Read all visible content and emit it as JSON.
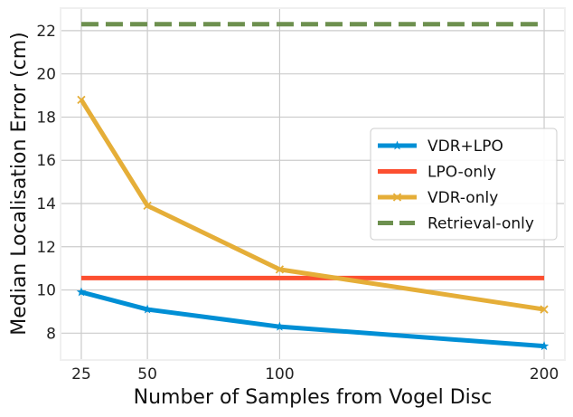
{
  "chart_data": {
    "type": "line",
    "title": "",
    "xlabel": "Number of Samples from Vogel Disc",
    "ylabel": "Median Localisation Error (cm)",
    "xlim": [
      17.5,
      207.5
    ],
    "ylim": [
      6.8,
      23
    ],
    "xticks": [
      25,
      50,
      100,
      200
    ],
    "yticks": [
      8,
      10,
      12,
      14,
      16,
      18,
      20,
      22
    ],
    "grid": true,
    "legend_position": "center-right",
    "series": [
      {
        "name": "VDR+LPO",
        "color": "#008fd5",
        "style": "solid",
        "marker": "star",
        "x": [
          25,
          50,
          100,
          200
        ],
        "y": [
          9.9,
          9.1,
          8.3,
          7.4
        ]
      },
      {
        "name": "LPO-only",
        "color": "#fc4f30",
        "style": "solid",
        "marker": "none",
        "x": [
          25,
          200
        ],
        "y": [
          10.55,
          10.55
        ]
      },
      {
        "name": "VDR-only",
        "color": "#e5ae38",
        "style": "solid",
        "marker": "x",
        "x": [
          25,
          50,
          100,
          200
        ],
        "y": [
          18.8,
          13.9,
          10.95,
          9.1
        ]
      },
      {
        "name": "Retrieval-only",
        "color": "#6d904f",
        "style": "dashed",
        "marker": "none",
        "x": [
          25,
          200
        ],
        "y": [
          22.3,
          22.3
        ]
      }
    ]
  }
}
